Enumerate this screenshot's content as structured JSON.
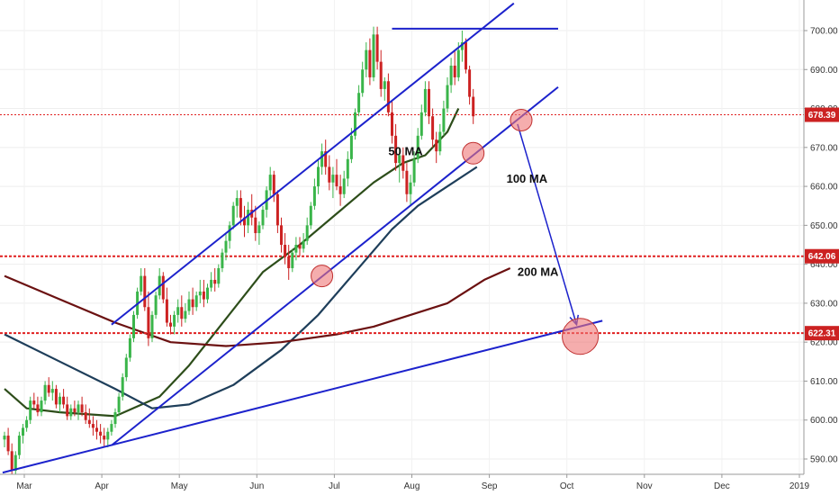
{
  "chart_data": {
    "type": "candlestick",
    "y_axis": {
      "side": "right",
      "min": 580,
      "max": 705,
      "ticks": [
        590,
        600,
        610,
        620,
        630,
        640,
        650,
        660,
        670,
        680,
        690,
        700
      ]
    },
    "x_axis": {
      "labels": [
        "Mar",
        "Apr",
        "May",
        "Jun",
        "Jul",
        "Aug",
        "Sep",
        "Oct",
        "Nov",
        "Dec",
        "2019"
      ],
      "bars_per_month": 21,
      "month_offset": [
        0,
        1,
        2,
        3,
        4,
        5,
        6,
        7,
        8,
        9,
        10
      ]
    },
    "candles": [
      [
        595,
        597,
        593,
        596
      ],
      [
        596,
        598,
        591,
        592
      ],
      [
        592,
        594,
        586,
        587
      ],
      [
        587,
        592,
        586,
        591
      ],
      [
        591,
        597,
        590,
        596
      ],
      [
        596,
        599,
        594,
        598
      ],
      [
        598,
        601,
        597,
        600
      ],
      [
        600,
        606,
        599,
        605
      ],
      [
        605,
        607,
        603,
        604
      ],
      [
        604,
        606,
        601,
        602
      ],
      [
        602,
        606,
        601,
        605
      ],
      [
        605,
        610,
        604,
        609
      ],
      [
        609,
        611,
        606,
        607
      ],
      [
        607,
        610,
        605,
        608
      ],
      [
        608,
        609,
        603,
        604
      ],
      [
        604,
        607,
        602,
        606
      ],
      [
        606,
        608,
        603,
        604
      ],
      [
        604,
        606,
        600,
        601
      ],
      [
        601,
        604,
        600,
        603
      ],
      [
        603,
        605,
        601,
        602
      ],
      [
        602,
        605,
        600,
        604
      ],
      [
        604,
        606,
        601,
        602
      ],
      [
        602,
        604,
        599,
        600
      ],
      [
        600,
        603,
        598,
        599
      ],
      [
        599,
        601,
        596,
        598
      ],
      [
        598,
        600,
        595,
        597
      ],
      [
        597,
        599,
        594,
        596
      ],
      [
        596,
        598,
        593,
        595
      ],
      [
        595,
        598,
        593,
        597
      ],
      [
        597,
        600,
        596,
        599
      ],
      [
        599,
        603,
        598,
        602
      ],
      [
        602,
        607,
        601,
        606
      ],
      [
        606,
        612,
        605,
        611
      ],
      [
        611,
        617,
        610,
        616
      ],
      [
        616,
        622,
        615,
        621
      ],
      [
        621,
        628,
        620,
        627
      ],
      [
        627,
        634,
        626,
        633
      ],
      [
        633,
        639,
        632,
        637
      ],
      [
        637,
        639,
        628,
        629
      ],
      [
        629,
        633,
        619,
        621
      ],
      [
        621,
        628,
        620,
        627
      ],
      [
        627,
        633,
        626,
        632
      ],
      [
        632,
        639,
        631,
        637
      ],
      [
        637,
        638,
        630,
        631
      ],
      [
        631,
        634,
        624,
        625
      ],
      [
        625,
        627,
        622,
        624
      ],
      [
        624,
        628,
        622,
        627
      ],
      [
        627,
        631,
        625,
        629
      ],
      [
        629,
        632,
        624,
        626
      ],
      [
        626,
        630,
        625,
        628
      ],
      [
        628,
        633,
        627,
        631
      ],
      [
        631,
        634,
        627,
        629
      ],
      [
        629,
        633,
        628,
        632
      ],
      [
        632,
        636,
        630,
        633
      ],
      [
        633,
        636,
        629,
        631
      ],
      [
        631,
        635,
        630,
        634
      ],
      [
        634,
        638,
        633,
        636
      ],
      [
        636,
        639,
        633,
        635
      ],
      [
        635,
        640,
        634,
        639
      ],
      [
        639,
        644,
        638,
        643
      ],
      [
        643,
        648,
        641,
        646
      ],
      [
        646,
        651,
        644,
        650
      ],
      [
        650,
        656,
        649,
        655
      ],
      [
        655,
        659,
        652,
        657
      ],
      [
        657,
        659,
        650,
        652
      ],
      [
        652,
        655,
        647,
        650
      ],
      [
        650,
        656,
        648,
        654
      ],
      [
        654,
        658,
        650,
        652
      ],
      [
        652,
        655,
        646,
        648
      ],
      [
        648,
        651,
        645,
        650
      ],
      [
        650,
        655,
        649,
        654
      ],
      [
        654,
        660,
        652,
        659
      ],
      [
        659,
        665,
        657,
        663
      ],
      [
        663,
        664,
        656,
        658
      ],
      [
        658,
        659,
        648,
        650
      ],
      [
        650,
        652,
        643,
        645
      ],
      [
        645,
        648,
        640,
        642
      ],
      [
        642,
        645,
        636,
        639
      ],
      [
        639,
        644,
        638,
        643
      ],
      [
        643,
        647,
        641,
        645
      ],
      [
        645,
        647,
        642,
        644
      ],
      [
        644,
        648,
        643,
        646
      ],
      [
        646,
        652,
        645,
        650
      ],
      [
        650,
        656,
        649,
        655
      ],
      [
        655,
        662,
        654,
        660
      ],
      [
        660,
        667,
        658,
        665
      ],
      [
        665,
        671,
        663,
        669
      ],
      [
        669,
        672,
        663,
        665
      ],
      [
        665,
        668,
        659,
        661
      ],
      [
        661,
        665,
        657,
        663
      ],
      [
        663,
        667,
        659,
        660
      ],
      [
        660,
        663,
        655,
        658
      ],
      [
        658,
        664,
        657,
        662
      ],
      [
        662,
        669,
        660,
        667
      ],
      [
        667,
        675,
        666,
        673
      ],
      [
        673,
        680,
        672,
        679
      ],
      [
        679,
        686,
        678,
        684
      ],
      [
        684,
        692,
        683,
        690
      ],
      [
        690,
        697,
        688,
        695
      ],
      [
        695,
        698,
        686,
        688
      ],
      [
        688,
        701,
        687,
        699
      ],
      [
        699,
        701,
        690,
        692
      ],
      [
        692,
        695,
        683,
        685
      ],
      [
        685,
        688,
        682,
        687
      ],
      [
        687,
        689,
        678,
        679
      ],
      [
        679,
        682,
        671,
        673
      ],
      [
        673,
        676,
        664,
        666
      ],
      [
        666,
        670,
        661,
        668
      ],
      [
        668,
        670,
        662,
        664
      ],
      [
        664,
        666,
        656,
        658
      ],
      [
        658,
        663,
        655,
        661
      ],
      [
        661,
        669,
        660,
        667
      ],
      [
        667,
        675,
        666,
        673
      ],
      [
        673,
        681,
        672,
        679
      ],
      [
        679,
        687,
        678,
        685
      ],
      [
        685,
        687,
        676,
        678
      ],
      [
        678,
        680,
        670,
        672
      ],
      [
        672,
        674,
        666,
        669
      ],
      [
        669,
        676,
        668,
        674
      ],
      [
        674,
        682,
        673,
        680
      ],
      [
        680,
        688,
        679,
        686
      ],
      [
        686,
        693,
        684,
        691
      ],
      [
        691,
        695,
        686,
        688
      ],
      [
        688,
        697,
        687,
        695
      ],
      [
        695,
        700,
        692,
        697
      ],
      [
        697,
        698,
        689,
        690
      ],
      [
        690,
        691,
        681,
        683
      ],
      [
        683,
        685,
        676,
        678
      ]
    ],
    "moving_averages": [
      {
        "label": "50 MA",
        "color": "#2d4d1a",
        "points": [
          [
            0,
            608
          ],
          [
            6,
            603
          ],
          [
            15,
            602
          ],
          [
            30,
            601
          ],
          [
            42,
            606
          ],
          [
            50,
            614
          ],
          [
            60,
            626
          ],
          [
            70,
            638
          ],
          [
            80,
            645
          ],
          [
            90,
            653
          ],
          [
            100,
            661
          ],
          [
            108,
            666
          ],
          [
            114,
            668
          ],
          [
            120,
            674
          ],
          [
            123,
            680
          ]
        ]
      },
      {
        "label": "100 MA",
        "color": "#1e3e5a",
        "points": [
          [
            0,
            622
          ],
          [
            15,
            615
          ],
          [
            30,
            608
          ],
          [
            40,
            603
          ],
          [
            50,
            604
          ],
          [
            62,
            609
          ],
          [
            75,
            618
          ],
          [
            85,
            627
          ],
          [
            95,
            638
          ],
          [
            105,
            649
          ],
          [
            112,
            655
          ],
          [
            120,
            660
          ],
          [
            128,
            665
          ]
        ]
      },
      {
        "label": "200 MA",
        "color": "#6b1111",
        "points": [
          [
            0,
            637
          ],
          [
            15,
            631
          ],
          [
            30,
            625
          ],
          [
            45,
            620
          ],
          [
            60,
            619
          ],
          [
            75,
            620
          ],
          [
            90,
            622
          ],
          [
            100,
            624
          ],
          [
            110,
            627
          ],
          [
            120,
            630
          ],
          [
            130,
            636
          ],
          [
            137,
            639
          ]
        ]
      }
    ],
    "horizontal_levels": [
      {
        "value": 678.39,
        "label": "678.39",
        "style": "dotted-thin"
      },
      {
        "value": 642.06,
        "label": "642.06",
        "style": "dotted-thick"
      },
      {
        "value": 622.31,
        "label": "622.31",
        "style": "dotted-thick"
      },
      {
        "value": 700.5,
        "x_from_bar": 105,
        "x_to_bar": 150,
        "style": "solid-blue"
      }
    ],
    "trendlines": [
      {
        "from": [
          -0.5,
          586.5
        ],
        "to": [
          162,
          625.5
        ]
      },
      {
        "from": [
          29,
          593.5
        ],
        "to": [
          150,
          685.5
        ]
      },
      {
        "from": [
          29,
          624.5
        ],
        "to": [
          138,
          707
        ]
      }
    ],
    "forecast_arrow": {
      "from": [
        139,
        676
      ],
      "to": [
        155,
        624.5
      ]
    },
    "highlight_circles": [
      {
        "bar": 86,
        "value": 637
      },
      {
        "bar": 127,
        "value": 668.5
      },
      {
        "bar": 140,
        "value": 677
      },
      {
        "bar": 156,
        "value": 621.5
      }
    ],
    "annotations": [
      {
        "text": "50 MA",
        "bar": 104,
        "value": 668
      },
      {
        "text": "100 MA",
        "bar": 136,
        "value": 661
      },
      {
        "text": "200 MA",
        "bar": 139,
        "value": 637
      }
    ],
    "colors": {
      "up": "#3ab54a",
      "down": "#cc2222",
      "trend": "#1c22cc",
      "level_red": "#e02020",
      "badge": "#cc2222",
      "highlight_fill": "#ee7777"
    }
  }
}
